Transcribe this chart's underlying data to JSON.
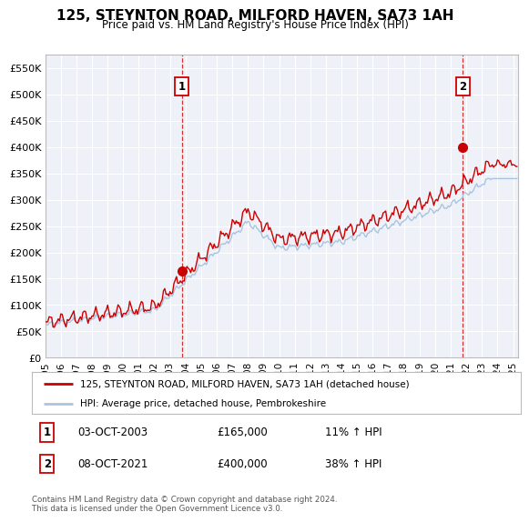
{
  "title": "125, STEYNTON ROAD, MILFORD HAVEN, SA73 1AH",
  "subtitle": "Price paid vs. HM Land Registry's House Price Index (HPI)",
  "ylabel_ticks": [
    "£0",
    "£50K",
    "£100K",
    "£150K",
    "£200K",
    "£250K",
    "£300K",
    "£350K",
    "£400K",
    "£450K",
    "£500K",
    "£550K"
  ],
  "ytick_values": [
    0,
    50000,
    100000,
    150000,
    200000,
    250000,
    300000,
    350000,
    400000,
    450000,
    500000,
    550000
  ],
  "ylim": [
    0,
    575000
  ],
  "xlim_start": 1995.0,
  "xlim_end": 2025.3,
  "sale1_x": 2003.75,
  "sale1_price": 165000,
  "sale2_x": 2021.77,
  "sale2_price": 400000,
  "legend_line1": "125, STEYNTON ROAD, MILFORD HAVEN, SA73 1AH (detached house)",
  "legend_line2": "HPI: Average price, detached house, Pembrokeshire",
  "ann1_date": "03-OCT-2003",
  "ann1_price": "£165,000",
  "ann1_hpi": "11% ↑ HPI",
  "ann2_date": "08-OCT-2021",
  "ann2_price": "£400,000",
  "ann2_hpi": "38% ↑ HPI",
  "footer": "Contains HM Land Registry data © Crown copyright and database right 2024.\nThis data is licensed under the Open Government Licence v3.0.",
  "hpi_color": "#aac4e0",
  "price_color": "#cc0000",
  "dashed_color": "#cc0000",
  "box_edge_color": "#cc0000",
  "chart_bg": "#eef2f8",
  "background_color": "#ffffff",
  "grid_color": "#ffffff",
  "xtick_years": [
    1995,
    1996,
    1997,
    1998,
    1999,
    2000,
    2001,
    2002,
    2003,
    2004,
    2005,
    2006,
    2007,
    2008,
    2009,
    2010,
    2011,
    2012,
    2013,
    2014,
    2015,
    2016,
    2017,
    2018,
    2019,
    2020,
    2021,
    2022,
    2023,
    2024,
    2025
  ]
}
